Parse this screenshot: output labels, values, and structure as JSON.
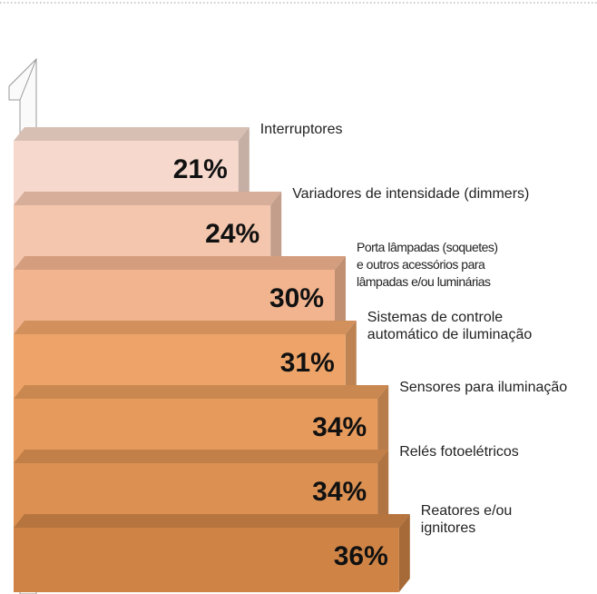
{
  "chart_data": {
    "type": "bar3d",
    "categories": [
      "Interruptores",
      "Variadores de intensidade (dimmers)",
      "Porta lâmpadas (soquetes)\ne outros acessórios para\nlâmpadas e/ou luminárias",
      "Sistemas de controle\nautomático de iluminação",
      "Sensores para iluminação",
      "Relés fotoelétricos",
      "Reatores e/ou\nignitores"
    ],
    "values": [
      21,
      24,
      30,
      31,
      34,
      34,
      36
    ],
    "value_labels": [
      "21%",
      "24%",
      "30%",
      "31%",
      "34%",
      "34%",
      "36%"
    ],
    "colors": [
      "#f6d9cc",
      "#f4c6ae",
      "#f1b48f",
      "#eea468",
      "#e69a5c",
      "#dc9152",
      "#cf8446"
    ]
  }
}
